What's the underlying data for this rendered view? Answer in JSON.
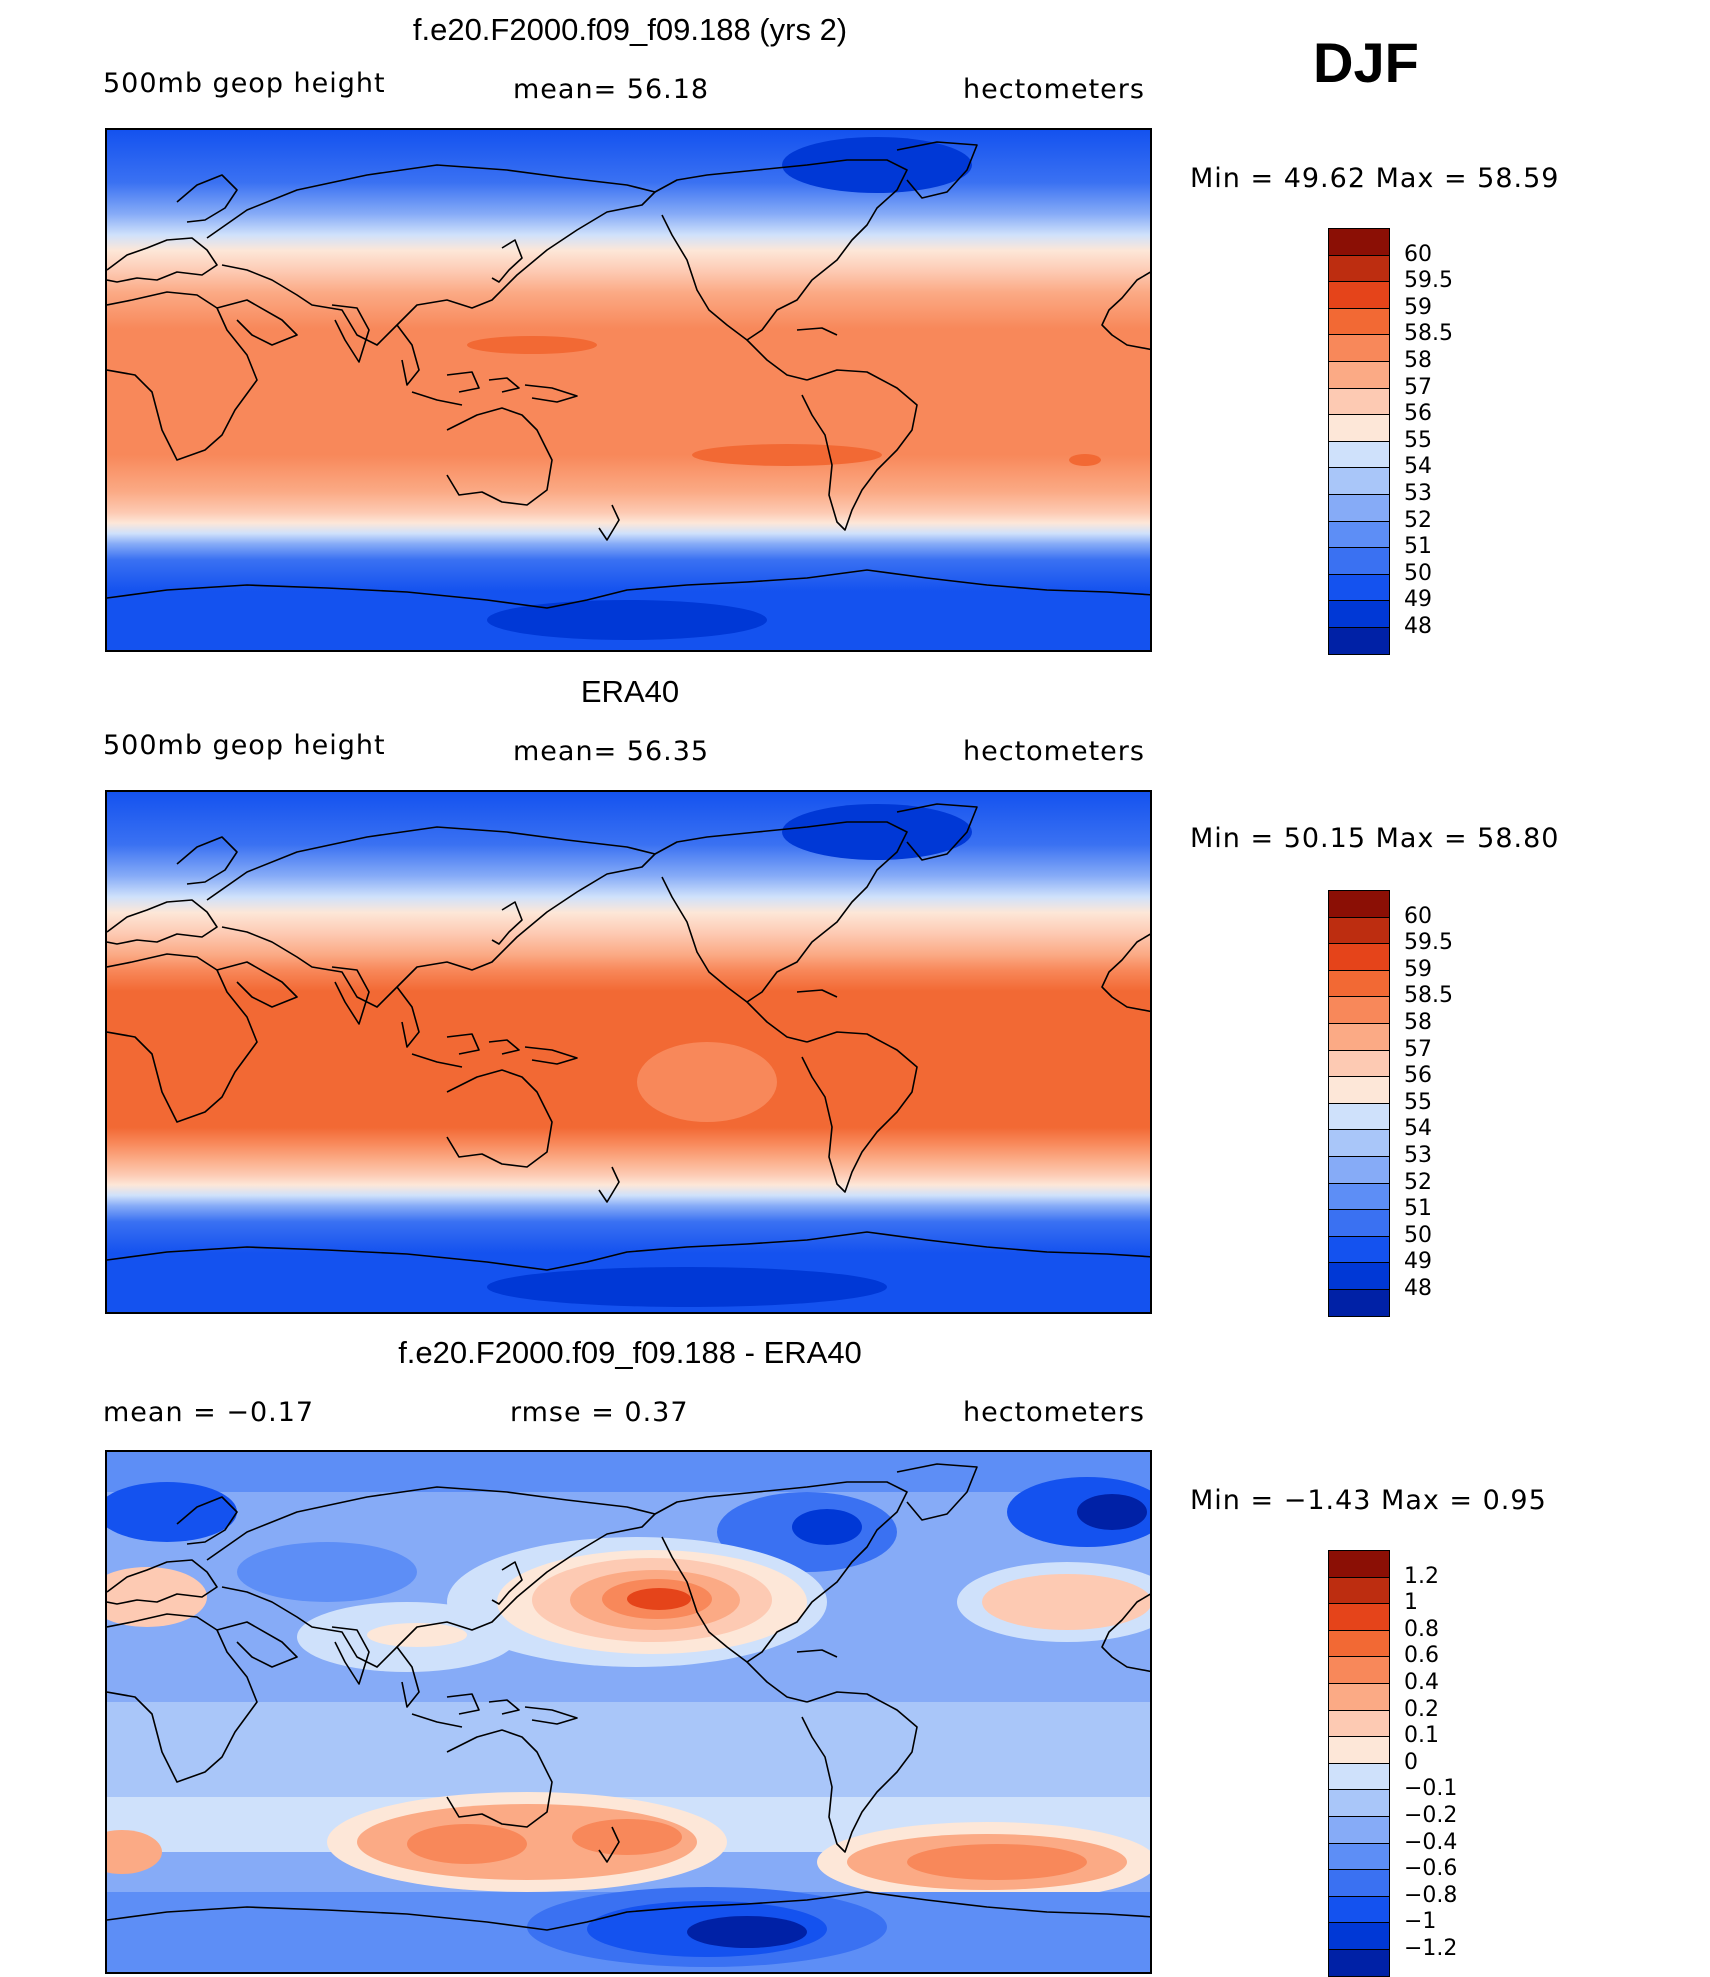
{
  "season": "DJF",
  "colors": {
    "height_scale": [
      "#00107d",
      "#0021a6",
      "#0038d6",
      "#1452ef",
      "#3a71f2",
      "#5d8ef6",
      "#86abf7",
      "#a9c6f9",
      "#cfe1fb",
      "#fde7d8",
      "#fdcab3",
      "#fbaa85",
      "#f8885a",
      "#f26934",
      "#e5441a",
      "#bd2d10",
      "#8b0f05"
    ],
    "diff_scale": [
      "#00107d",
      "#0021a6",
      "#0038d6",
      "#1452ef",
      "#3a71f2",
      "#5d8ef6",
      "#86abf7",
      "#a9c6f9",
      "#cfe1fb",
      "#fde7d8",
      "#fdcab3",
      "#fbaa85",
      "#f8885a",
      "#f26934",
      "#e5441a",
      "#bd2d10",
      "#8b0f05"
    ]
  },
  "panels": [
    {
      "title": "f.e20.F2000.f09_f09.188 (yrs 2)",
      "left_label": "500mb  geop  height",
      "center_label": "mean=   56.18",
      "right_label": "hectometers",
      "minmax": "Min  =    49.62  Max  =    58.59",
      "scale_labels": [
        "60",
        "59.5",
        "59",
        "58.5",
        "58",
        "57",
        "56",
        "55",
        "54",
        "53",
        "52",
        "51",
        "50",
        "49",
        "48"
      ]
    },
    {
      "title": "ERA40",
      "left_label": "500mb  geop  height",
      "center_label": "mean=   56.35",
      "right_label": "hectometers",
      "minmax": "Min  =    50.15  Max  =    58.80",
      "scale_labels": [
        "60",
        "59.5",
        "59",
        "58.5",
        "58",
        "57",
        "56",
        "55",
        "54",
        "53",
        "52",
        "51",
        "50",
        "49",
        "48"
      ]
    },
    {
      "title": "f.e20.F2000.f09_f09.188 - ERA40",
      "left_label": "mean  =    −0.17",
      "center_label": "rmse  =     0.37",
      "right_label": "hectometers",
      "minmax": "Min  =    −1.43  Max  =      0.95",
      "scale_labels": [
        "1.2",
        "1",
        "0.8",
        "0.6",
        "0.4",
        "0.2",
        "0.1",
        "0",
        "−0.1",
        "−0.2",
        "−0.4",
        "−0.6",
        "−0.8",
        "−1",
        "−1.2"
      ]
    }
  ]
}
